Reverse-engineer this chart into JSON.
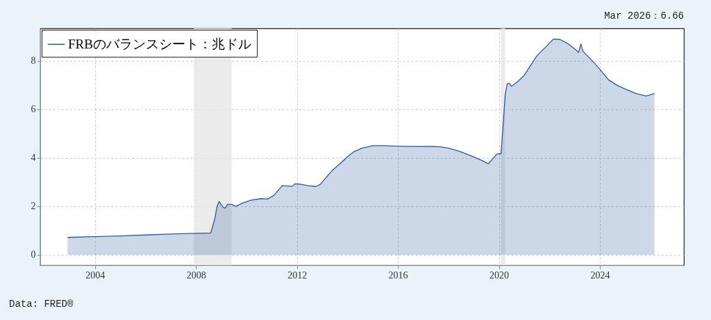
{
  "chart_data": {
    "type": "area",
    "x": [
      "2002-12",
      "2004-01",
      "2005-01",
      "2006-01",
      "2007-01",
      "2008-01",
      "2008-08",
      "2008-09",
      "2008-10",
      "2008-11",
      "2008-12",
      "2009-02",
      "2009-03",
      "2009-04",
      "2009-06",
      "2009-08",
      "2009-11",
      "2010-03",
      "2010-08",
      "2010-11",
      "2011-02",
      "2011-06",
      "2011-11",
      "2011-12",
      "2012-02",
      "2012-06",
      "2012-10",
      "2012-12",
      "2013-03",
      "2013-06",
      "2013-10",
      "2014-01",
      "2014-04",
      "2014-08",
      "2015-01",
      "2015-06",
      "2016-01",
      "2016-08",
      "2017-06",
      "2017-09",
      "2018-01",
      "2018-06",
      "2018-12",
      "2019-06",
      "2019-08",
      "2019-10",
      "2019-12",
      "2020-01",
      "2020-02",
      "2020-03",
      "2020-04",
      "2020-05",
      "2020-06",
      "2020-07",
      "2020-10",
      "2021-01",
      "2021-04",
      "2021-07",
      "2021-11",
      "2022-03",
      "2022-06",
      "2022-10",
      "2023-01",
      "2023-03",
      "2023-04",
      "2023-05",
      "2023-10",
      "2024-01",
      "2024-05",
      "2024-09",
      "2024-12",
      "2025-06",
      "2025-11",
      "2026-01",
      "2026-03"
    ],
    "series": [
      {
        "name": "FRBのバランスシート：兆ドル",
        "color": "#2b5aa0",
        "values": [
          0.72,
          0.75,
          0.78,
          0.82,
          0.86,
          0.89,
          0.9,
          1.2,
          1.5,
          2.0,
          2.2,
          1.95,
          1.93,
          2.08,
          2.08,
          2.0,
          2.13,
          2.25,
          2.32,
          2.3,
          2.45,
          2.85,
          2.83,
          2.93,
          2.92,
          2.86,
          2.82,
          2.9,
          3.2,
          3.5,
          3.8,
          4.05,
          4.25,
          4.4,
          4.5,
          4.5,
          4.48,
          4.47,
          4.47,
          4.46,
          4.4,
          4.28,
          4.08,
          3.85,
          3.75,
          3.95,
          4.15,
          4.17,
          4.17,
          5.3,
          6.6,
          7.05,
          7.08,
          6.95,
          7.15,
          7.4,
          7.8,
          8.2,
          8.55,
          8.9,
          8.89,
          8.7,
          8.5,
          8.35,
          8.7,
          8.4,
          7.95,
          7.65,
          7.23,
          7.0,
          6.88,
          6.66,
          6.55,
          6.6,
          6.66
        ]
      }
    ],
    "xlim": [
      "2001-11",
      "2027-05"
    ],
    "xticks": [
      "2004",
      "2008",
      "2012",
      "2016",
      "2020",
      "2024"
    ],
    "ylim": [
      -0.43,
      9.34
    ],
    "yticks": [
      0,
      2,
      4,
      6,
      8
    ],
    "bands": [
      {
        "axis": "x",
        "from": "2007-12",
        "to": "2009-06",
        "color": "#e6e6e6"
      },
      {
        "axis": "x",
        "from": "2020-02",
        "to": "2020-04",
        "color": "#e6e6e6"
      }
    ],
    "annotations": [
      "Mar 2026：6.66",
      "Data: FRED®"
    ],
    "grid": true,
    "legend": "top left"
  }
}
